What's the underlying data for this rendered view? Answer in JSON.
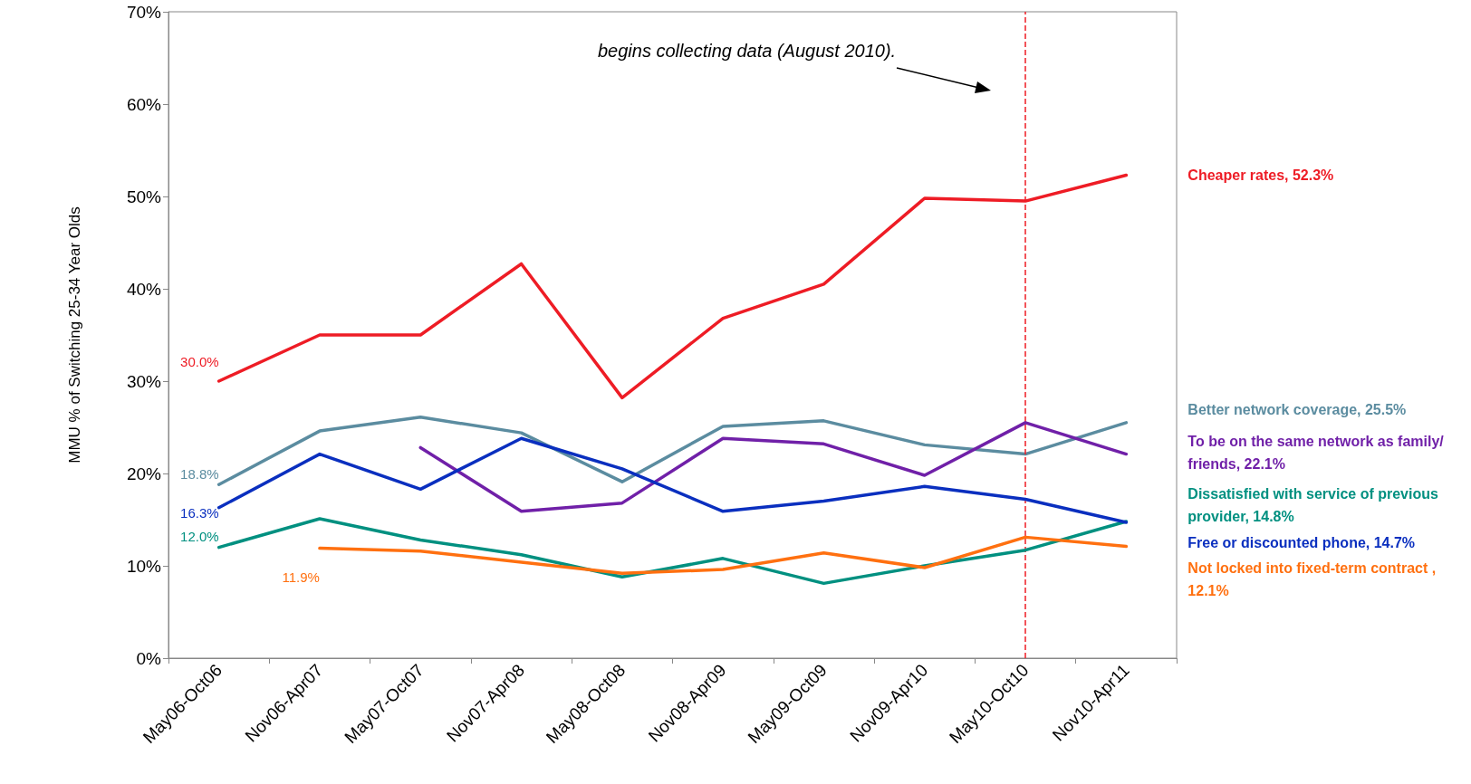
{
  "chart_data": {
    "type": "line",
    "ylabel": "MMU % of Switching 25-34 Year Olds",
    "categories": [
      "May06-Oct06",
      "Nov06-Apr07",
      "May07-Oct07",
      "Nov07-Apr08",
      "May08-Oct08",
      "Nov08-Apr09",
      "May09-Oct09",
      "Nov09-Apr10",
      "May10-Oct10",
      "Nov10-Apr11"
    ],
    "series": [
      {
        "name": "Cheaper rates, 52.3%",
        "color": "#ee1c25",
        "values": [
          30.0,
          35.0,
          35.0,
          42.7,
          28.2,
          36.8,
          40.5,
          49.8,
          49.5,
          52.3
        ],
        "value_labels": [
          "30.0%",
          null,
          null,
          null,
          null,
          null,
          null,
          null,
          null,
          null
        ]
      },
      {
        "name": "Better network coverage, 25.5%",
        "color": "#5b8ca0",
        "values": [
          18.8,
          24.6,
          26.1,
          24.4,
          19.1,
          25.1,
          25.7,
          23.1,
          22.1,
          25.5
        ],
        "value_labels": [
          "18.8%",
          null,
          null,
          null,
          null,
          null,
          null,
          null,
          null,
          null
        ]
      },
      {
        "name": "To be on the same network as family/friends, 22.1%",
        "color": "#7020a8",
        "values": [
          null,
          null,
          22.8,
          15.9,
          16.8,
          23.8,
          23.2,
          19.8,
          25.5,
          22.1
        ]
      },
      {
        "name": "Dissatisfied with service of previous provider, 14.8%",
        "color": "#009080",
        "values": [
          12.0,
          15.1,
          12.8,
          11.2,
          8.8,
          10.8,
          8.1,
          10.0,
          11.7,
          14.8
        ],
        "value_labels": [
          "12.0%",
          null,
          null,
          null,
          null,
          null,
          null,
          null,
          null,
          null
        ]
      },
      {
        "name": "Free or discounted phone, 14.7%",
        "color": "#0a2fbf",
        "values": [
          16.3,
          22.1,
          18.3,
          23.8,
          20.5,
          15.9,
          17.0,
          18.6,
          17.2,
          14.7
        ],
        "value_labels": [
          "16.3%",
          null,
          null,
          null,
          null,
          null,
          null,
          null,
          null,
          null
        ]
      },
      {
        "name": "Not locked into fixed-term contract , 12.1%",
        "color": "#ff7010",
        "values": [
          null,
          11.9,
          11.6,
          10.4,
          9.2,
          9.6,
          11.4,
          9.8,
          13.1,
          12.1
        ],
        "value_labels": [
          null,
          "11.9%",
          null,
          null,
          null,
          null,
          null,
          null,
          null,
          null
        ]
      }
    ],
    "ylim": [
      0,
      70
    ],
    "yticks": [
      {
        "value": 0,
        "label": "0%"
      },
      {
        "value": 10,
        "label": "10%"
      },
      {
        "value": 20,
        "label": "20%"
      },
      {
        "value": 30,
        "label": "30%"
      },
      {
        "value": 40,
        "label": "40%"
      },
      {
        "value": 50,
        "label": "50%"
      },
      {
        "value": 60,
        "label": "60%"
      },
      {
        "value": 70,
        "label": "70%"
      }
    ],
    "ref_lines": [
      {
        "axis": "x",
        "value": "May10-Oct10",
        "label": null,
        "color": "#ee1c25",
        "line_style": "dashed"
      }
    ],
    "annotations": [
      "begins collecting data (August 2010)."
    ],
    "grid": false,
    "legend": false,
    "marker": "none",
    "line_style": "solid"
  }
}
